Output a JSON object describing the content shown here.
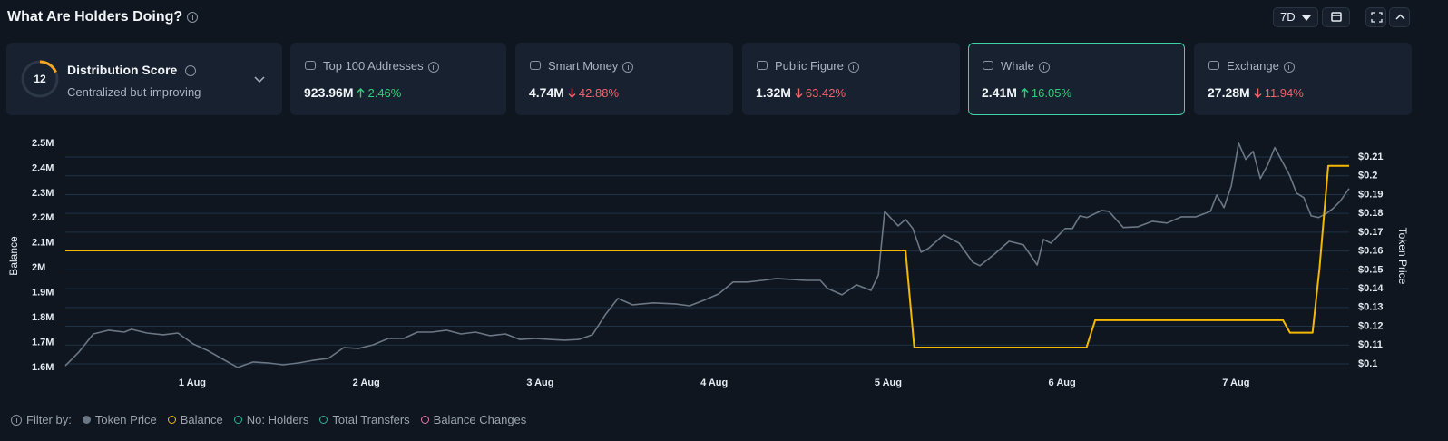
{
  "header": {
    "title": "What Are Holders Doing?",
    "period": "7D"
  },
  "score_card": {
    "score": "12",
    "title": "Distribution Score",
    "subtitle": "Centralized but improving"
  },
  "cards": [
    {
      "label": "Top 100 Addresses",
      "value": "923.96M",
      "change": "2.46%",
      "direction": "up",
      "selected": false
    },
    {
      "label": "Smart Money",
      "value": "4.74M",
      "change": "42.88%",
      "direction": "down",
      "selected": false
    },
    {
      "label": "Public Figure",
      "value": "1.32M",
      "change": "63.42%",
      "direction": "down",
      "selected": false
    },
    {
      "label": "Whale",
      "value": "2.41M",
      "change": "16.05%",
      "direction": "up",
      "selected": true
    },
    {
      "label": "Exchange",
      "value": "27.28M",
      "change": "11.94%",
      "direction": "down",
      "selected": false
    }
  ],
  "chart_data": {
    "type": "line",
    "ylabel": "Balance",
    "y2label": "Token Price",
    "xlim": [
      0.27,
      7.65
    ],
    "xticks": [
      {
        "value": 1,
        "label": "1 Aug"
      },
      {
        "value": 2,
        "label": "2 Aug"
      },
      {
        "value": 3,
        "label": "3 Aug"
      },
      {
        "value": 4,
        "label": "4 Aug"
      },
      {
        "value": 5,
        "label": "5 Aug"
      },
      {
        "value": 6,
        "label": "6 Aug"
      },
      {
        "value": 7,
        "label": "7 Aug"
      }
    ],
    "ylim": [
      1600000,
      2500000
    ],
    "yticks": [
      {
        "value": 1600000,
        "label": "1.6M"
      },
      {
        "value": 1700000,
        "label": "1.7M"
      },
      {
        "value": 1800000,
        "label": "1.8M"
      },
      {
        "value": 1900000,
        "label": "1.9M"
      },
      {
        "value": 2000000,
        "label": "2M"
      },
      {
        "value": 2100000,
        "label": "2.1M"
      },
      {
        "value": 2200000,
        "label": "2.2M"
      },
      {
        "value": 2300000,
        "label": "2.3M"
      },
      {
        "value": 2400000,
        "label": "2.4M"
      },
      {
        "value": 2500000,
        "label": "2.5M"
      }
    ],
    "y2lim": [
      0.1,
      0.21
    ],
    "y2ticks": [
      {
        "value": 0.1,
        "label": "$0.1"
      },
      {
        "value": 0.11,
        "label": "$0.11"
      },
      {
        "value": 0.12,
        "label": "$0.12"
      },
      {
        "value": 0.13,
        "label": "$0.13"
      },
      {
        "value": 0.14,
        "label": "$0.14"
      },
      {
        "value": 0.15,
        "label": "$0.15"
      },
      {
        "value": 0.16,
        "label": "$0.16"
      },
      {
        "value": 0.17,
        "label": "$0.17"
      },
      {
        "value": 0.18,
        "label": "$0.18"
      },
      {
        "value": 0.19,
        "label": "$0.19"
      },
      {
        "value": 0.2,
        "label": "$0.2"
      },
      {
        "value": 0.21,
        "label": "$0.21"
      }
    ],
    "grid": true,
    "series": [
      {
        "name": "Token Price",
        "color": "#6b7785",
        "axis": "y2",
        "legend_marker": "filled",
        "x": [
          0.27,
          0.348,
          0.431,
          0.52,
          0.609,
          0.65,
          0.739,
          0.833,
          0.917,
          1.005,
          1.094,
          1.177,
          1.261,
          1.35,
          1.438,
          1.522,
          1.61,
          1.694,
          1.782,
          1.871,
          1.955,
          2.038,
          2.127,
          2.215,
          2.294,
          2.377,
          2.461,
          2.544,
          2.628,
          2.711,
          2.8,
          2.883,
          2.972,
          3.055,
          3.139,
          3.222,
          3.3,
          3.374,
          3.447,
          3.53,
          3.65,
          3.775,
          3.859,
          3.942,
          4.026,
          4.109,
          4.193,
          4.276,
          4.359,
          4.443,
          4.526,
          4.61,
          4.652,
          4.735,
          4.818,
          4.902,
          4.944,
          4.98,
          5.058,
          5.1,
          5.142,
          5.189,
          5.231,
          5.319,
          5.408,
          5.486,
          5.528,
          5.611,
          5.695,
          5.778,
          5.857,
          5.893,
          5.935,
          6.018,
          6.06,
          6.102,
          6.143,
          6.227,
          6.269,
          6.352,
          6.436,
          6.519,
          6.603,
          6.686,
          6.77,
          6.853,
          6.889,
          6.931,
          6.973,
          7.015,
          7.056,
          7.098,
          7.14,
          7.182,
          7.223,
          7.265,
          7.307,
          7.348,
          7.39,
          7.432,
          7.474,
          7.515,
          7.557,
          7.599,
          7.65
        ],
        "values": [
          0.099,
          0.1063,
          0.1159,
          0.1179,
          0.1169,
          0.1184,
          0.1164,
          0.1155,
          0.1164,
          0.1106,
          0.1068,
          0.1024,
          0.0981,
          0.101,
          0.1005,
          0.0995,
          0.1005,
          0.1019,
          0.1029,
          0.1087,
          0.1082,
          0.1101,
          0.1135,
          0.1135,
          0.1169,
          0.1169,
          0.1179,
          0.1159,
          0.1169,
          0.115,
          0.1159,
          0.113,
          0.1135,
          0.113,
          0.1126,
          0.113,
          0.1155,
          0.1261,
          0.1348,
          0.1314,
          0.1324,
          0.1319,
          0.1309,
          0.1338,
          0.1372,
          0.1435,
          0.1435,
          0.1444,
          0.1454,
          0.1449,
          0.1444,
          0.1444,
          0.1401,
          0.1367,
          0.142,
          0.1391,
          0.1473,
          0.1811,
          0.1734,
          0.1768,
          0.172,
          0.1594,
          0.1613,
          0.1686,
          0.1642,
          0.1541,
          0.1522,
          0.1584,
          0.1652,
          0.1633,
          0.1526,
          0.1662,
          0.1642,
          0.172,
          0.172,
          0.1787,
          0.1778,
          0.1816,
          0.1811,
          0.1725,
          0.1729,
          0.1758,
          0.1749,
          0.1782,
          0.1782,
          0.1811,
          0.1898,
          0.1831,
          0.1947,
          0.2174,
          0.2087,
          0.213,
          0.1985,
          0.2058,
          0.215,
          0.2077,
          0.2005,
          0.1908,
          0.1884,
          0.1787,
          0.1778,
          0.1797,
          0.1826,
          0.1865,
          0.1932
        ]
      },
      {
        "name": "Balance",
        "color": "#f5b800",
        "legend_marker": "ring",
        "x": [
          0.27,
          5.1,
          5.15,
          6.14,
          6.19,
          7.27,
          7.31,
          7.44,
          7.48,
          7.53,
          7.65
        ],
        "values": [
          2070000,
          2070000,
          1680000,
          1680000,
          1790000,
          1790000,
          1740000,
          1740000,
          2000000,
          2410000,
          2410000
        ]
      }
    ],
    "filter_label": "Filter by:",
    "extra_filters": [
      {
        "name": "No: Holders",
        "color": "#2fb39a"
      },
      {
        "name": "Total Transfers",
        "color": "#2fb39a"
      },
      {
        "name": "Balance Changes",
        "color": "#e57ba8"
      }
    ]
  }
}
